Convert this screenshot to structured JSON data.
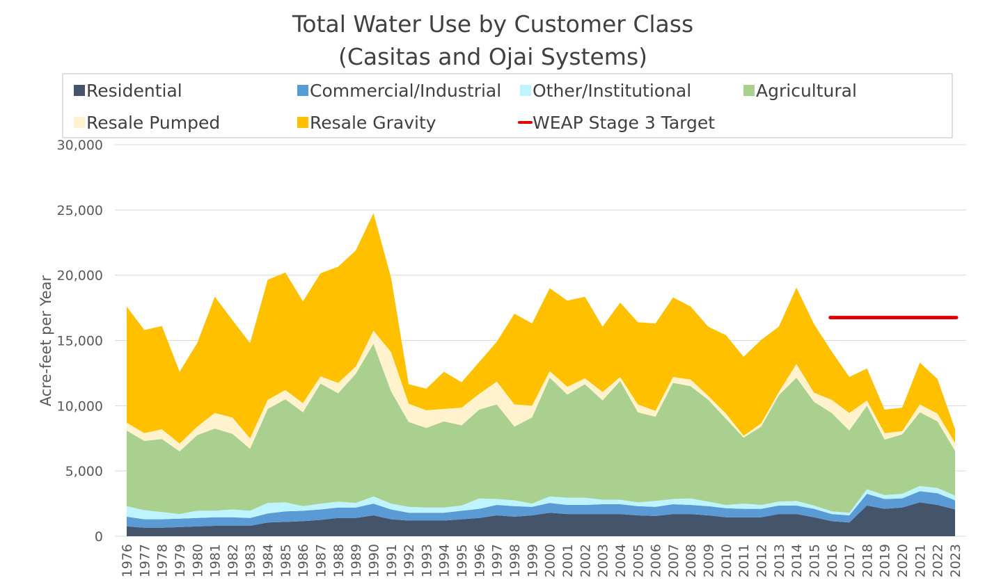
{
  "chart_data": {
    "type": "area",
    "stacked": true,
    "title": "Total Water Use by Customer Class",
    "subtitle": "(Casitas and Ojai Systems)",
    "xlabel": "",
    "ylabel": "Acre-feet per Year",
    "ylim": [
      0,
      30000
    ],
    "yticks": [
      0,
      5000,
      10000,
      15000,
      20000,
      25000,
      30000
    ],
    "ytick_labels": [
      "0",
      "5,000",
      "10,000",
      "15,000",
      "20,000",
      "25,000",
      "30,000"
    ],
    "grid": true,
    "legend_position": "top",
    "categories": [
      "1976",
      "1977",
      "1978",
      "1979",
      "1980",
      "1981",
      "1982",
      "1983",
      "1984",
      "1985",
      "1986",
      "1987",
      "1988",
      "1989",
      "1990",
      "1991",
      "1992",
      "1993",
      "1994",
      "1995",
      "1996",
      "1997",
      "1998",
      "1999",
      "2000",
      "2001",
      "2002",
      "2003",
      "2004",
      "2005",
      "2006",
      "2007",
      "2008",
      "2009",
      "2010",
      "2011",
      "2012",
      "2013",
      "2014",
      "2015",
      "2016",
      "2017",
      "2018",
      "2019",
      "2020",
      "2021",
      "2022",
      "2023"
    ],
    "series": [
      {
        "name": "Residential",
        "color": "#44546A",
        "values": [
          750,
          650,
          650,
          700,
          750,
          800,
          800,
          800,
          1050,
          1100,
          1150,
          1250,
          1400,
          1400,
          1600,
          1300,
          1200,
          1200,
          1200,
          1300,
          1400,
          1600,
          1500,
          1600,
          1800,
          1700,
          1700,
          1700,
          1700,
          1600,
          1550,
          1700,
          1700,
          1600,
          1450,
          1450,
          1450,
          1700,
          1700,
          1450,
          1150,
          1050,
          2350,
          2100,
          2200,
          2600,
          2400,
          2050
        ]
      },
      {
        "name": "Commercial/Industrial",
        "color": "#5B9BD5",
        "values": [
          750,
          650,
          650,
          650,
          650,
          650,
          650,
          600,
          700,
          800,
          800,
          800,
          800,
          800,
          900,
          750,
          600,
          600,
          600,
          650,
          700,
          800,
          800,
          650,
          750,
          700,
          700,
          750,
          750,
          700,
          700,
          750,
          700,
          700,
          700,
          650,
          650,
          650,
          650,
          650,
          550,
          550,
          900,
          750,
          700,
          850,
          900,
          700
        ]
      },
      {
        "name": "Other/Institutional",
        "color": "#BDF4FF",
        "values": [
          800,
          700,
          550,
          350,
          550,
          500,
          600,
          550,
          800,
          700,
          350,
          450,
          450,
          350,
          550,
          450,
          450,
          400,
          400,
          400,
          800,
          450,
          450,
          250,
          500,
          550,
          550,
          350,
          350,
          300,
          450,
          400,
          500,
          350,
          250,
          400,
          300,
          300,
          350,
          250,
          200,
          200,
          350,
          300,
          350,
          400,
          400,
          350
        ]
      },
      {
        "name": "Agricultural",
        "color": "#A9D08E",
        "values": [
          5800,
          5300,
          5600,
          4800,
          5800,
          6300,
          5800,
          4750,
          7200,
          7900,
          7200,
          9200,
          8300,
          9900,
          11700,
          8600,
          6500,
          6100,
          6600,
          6150,
          6800,
          7250,
          5650,
          6600,
          9100,
          7900,
          8700,
          7600,
          9100,
          6900,
          6450,
          8900,
          8600,
          7800,
          6600,
          5050,
          6000,
          8150,
          9450,
          7950,
          7550,
          6300,
          6400,
          4250,
          4550,
          5650,
          5100,
          3450
        ]
      },
      {
        "name": "Resale Pumped",
        "color": "#FFF2CC",
        "values": [
          600,
          600,
          750,
          600,
          650,
          1200,
          1250,
          800,
          700,
          700,
          700,
          550,
          800,
          550,
          1000,
          3000,
          1400,
          1350,
          950,
          1350,
          1200,
          1750,
          1700,
          900,
          500,
          600,
          450,
          650,
          300,
          600,
          450,
          450,
          500,
          300,
          400,
          150,
          250,
          250,
          1050,
          700,
          1000,
          1350,
          400,
          500,
          250,
          600,
          600,
          600
        ]
      },
      {
        "name": "Resale Gravity",
        "color": "#FFC000",
        "values": [
          8900,
          7900,
          7900,
          5500,
          6400,
          8900,
          7450,
          7300,
          9200,
          9000,
          7800,
          7900,
          8900,
          8900,
          9000,
          5700,
          1500,
          1650,
          2850,
          1950,
          2450,
          3050,
          6950,
          6300,
          6350,
          6600,
          6250,
          5000,
          5700,
          6300,
          6700,
          6100,
          5600,
          5300,
          6000,
          6050,
          6400,
          5000,
          5850,
          5250,
          3700,
          2750,
          2450,
          1800,
          1800,
          3200,
          2650,
          1050
        ]
      }
    ],
    "reference_line": {
      "name": "WEAP Stage 3 Target",
      "color": "#E00000",
      "value": 16750,
      "x_start": "2016",
      "x_end": "2023"
    }
  },
  "legend": {
    "items": [
      {
        "label": "Residential",
        "color": "#44546A",
        "kind": "square"
      },
      {
        "label": "Commercial/Industrial",
        "color": "#5B9BD5",
        "kind": "square"
      },
      {
        "label": "Other/Institutional",
        "color": "#BDF4FF",
        "kind": "square"
      },
      {
        "label": "Agricultural",
        "color": "#A9D08E",
        "kind": "square"
      },
      {
        "label": "Resale Pumped",
        "color": "#FFF2CC",
        "kind": "square"
      },
      {
        "label": "Resale Gravity",
        "color": "#FFC000",
        "kind": "square"
      },
      {
        "label": "WEAP Stage 3 Target",
        "color": "#E00000",
        "kind": "line"
      }
    ]
  }
}
